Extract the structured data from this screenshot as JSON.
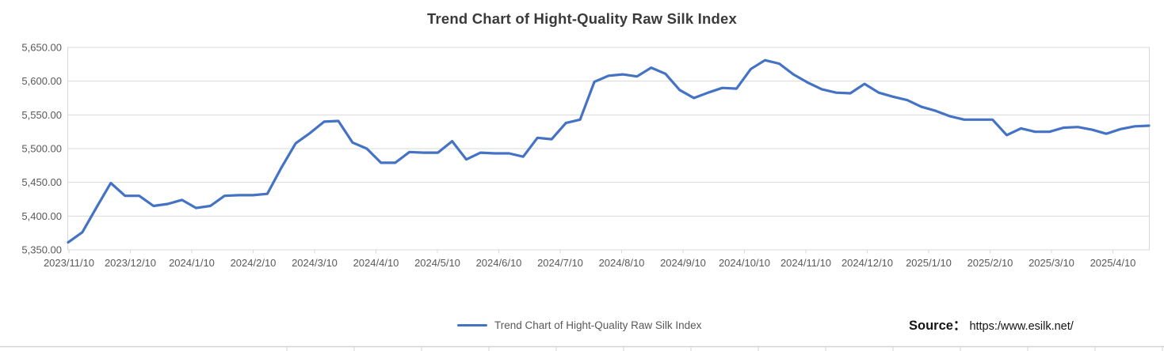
{
  "title": "Trend Chart of Hight-Quality Raw Silk Index",
  "legend": {
    "label": "Trend Chart of Hight-Quality Raw Silk Index"
  },
  "source": {
    "prefix": "Source：",
    "url": "https:/www.esilk.net/"
  },
  "colors": {
    "line": "#4472C4",
    "grid": "#D9D9D9",
    "axis_text": "#595959",
    "title_text": "#3A3A3A",
    "divider": "#D4D4D4"
  },
  "chart_data": {
    "type": "line",
    "title": "Trend Chart of Hight-Quality Raw Silk Index",
    "series_name": "Trend Chart of Hight-Quality Raw Silk Index",
    "legend_position": "bottom",
    "grid": true,
    "ylim": [
      5350,
      5650
    ],
    "y_tick_step": 50,
    "y_tick_labels": [
      "5,350.00",
      "5,400.00",
      "5,450.00",
      "5,500.00",
      "5,550.00",
      "5,600.00",
      "5,650.00"
    ],
    "categories": [
      "2023/11/10",
      "2023/12/10",
      "2024/1/10",
      "2024/2/10",
      "2024/3/10",
      "2024/4/10",
      "2024/5/10",
      "2024/6/10",
      "2024/7/10",
      "2024/8/10",
      "2024/9/10",
      "2024/10/10",
      "2024/11/10",
      "2024/12/10",
      "2025/1/10",
      "2025/2/10",
      "2025/3/10",
      "2025/4/10"
    ],
    "values": [
      5361,
      5376,
      5413,
      5449,
      5430,
      5430,
      5415,
      5418,
      5424,
      5412,
      5415,
      5430,
      5431,
      5431,
      5433,
      5472,
      5508,
      5523,
      5540,
      5541,
      5509,
      5500,
      5479,
      5479,
      5495,
      5494,
      5494,
      5511,
      5484,
      5494,
      5493,
      5493,
      5488,
      5516,
      5514,
      5538,
      5543,
      5599,
      5608,
      5610,
      5607,
      5620,
      5611,
      5587,
      5575,
      5583,
      5590,
      5589,
      5618,
      5631,
      5626,
      5610,
      5598,
      5588,
      5583,
      5582,
      5596,
      5583,
      5577,
      5572,
      5562,
      5556,
      5548,
      5543,
      5543,
      5543,
      5520,
      5530,
      5525,
      5525,
      5531,
      5532,
      5528,
      5522,
      5529,
      5533,
      5534
    ]
  }
}
